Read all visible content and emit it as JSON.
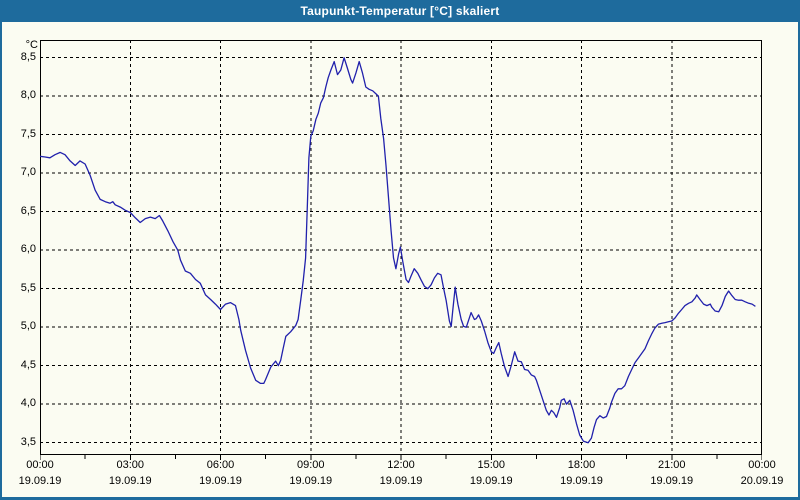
{
  "window": {
    "title": "Taupunkt-Temperatur [°C] skaliert"
  },
  "colors": {
    "titlebar_bg": "#1e6b9d",
    "titlebar_text": "#ffffff",
    "window_bg": "#fbfcf2",
    "border_blue": "#1e6b9d",
    "axis_black": "#000000",
    "line_blue": "#2121ac"
  },
  "chart_data": {
    "type": "line",
    "title": "Taupunkt-Temperatur [°C] skaliert",
    "unit_label": "°C",
    "xlabel": "",
    "ylabel": "°C",
    "grid": "dashed",
    "legend": "none",
    "xlim_hours": [
      0,
      24
    ],
    "ylim": [
      3.34,
      8.73
    ],
    "y_ticks": [
      {
        "value": 8.5,
        "label": "8,5"
      },
      {
        "value": 8.0,
        "label": "8,0"
      },
      {
        "value": 7.5,
        "label": "7,5"
      },
      {
        "value": 7.0,
        "label": "7,0"
      },
      {
        "value": 6.5,
        "label": "6,5"
      },
      {
        "value": 6.0,
        "label": "6,0"
      },
      {
        "value": 5.5,
        "label": "5,5"
      },
      {
        "value": 5.0,
        "label": "5,0"
      },
      {
        "value": 4.5,
        "label": "4,5"
      },
      {
        "value": 4.0,
        "label": "4,0"
      },
      {
        "value": 3.5,
        "label": "3,5"
      }
    ],
    "x_ticks": [
      {
        "hour": 0,
        "time": "00:00",
        "date": "19.09.19"
      },
      {
        "hour": 3,
        "time": "03:00",
        "date": "19.09.19"
      },
      {
        "hour": 6,
        "time": "06:00",
        "date": "19.09.19"
      },
      {
        "hour": 9,
        "time": "09:00",
        "date": "19.09.19"
      },
      {
        "hour": 12,
        "time": "12:00",
        "date": "19.09.19"
      },
      {
        "hour": 15,
        "time": "15:00",
        "date": "19.09.19"
      },
      {
        "hour": 18,
        "time": "18:00",
        "date": "19.09.19"
      },
      {
        "hour": 21,
        "time": "21:00",
        "date": "19.09.19"
      },
      {
        "hour": 24,
        "time": "00:00",
        "date": "20.09.19"
      }
    ],
    "x_minor_ticks_hours": [
      1.5,
      4.5,
      7.5,
      10.5,
      13.5,
      16.5,
      19.5,
      22.5
    ],
    "series": [
      {
        "name": "Taupunkt-Temperatur skaliert",
        "color": "#2121ac",
        "points": [
          [
            0,
            7.22
          ],
          [
            0.17,
            7.21
          ],
          [
            0.33,
            7.2
          ],
          [
            0.5,
            7.24
          ],
          [
            0.67,
            7.27
          ],
          [
            0.83,
            7.24
          ],
          [
            1,
            7.16
          ],
          [
            1.17,
            7.1
          ],
          [
            1.33,
            7.16
          ],
          [
            1.5,
            7.12
          ],
          [
            1.67,
            6.97
          ],
          [
            1.83,
            6.78
          ],
          [
            2,
            6.66
          ],
          [
            2.17,
            6.63
          ],
          [
            2.33,
            6.61
          ],
          [
            2.42,
            6.63
          ],
          [
            2.5,
            6.59
          ],
          [
            2.67,
            6.56
          ],
          [
            2.83,
            6.52
          ],
          [
            3,
            6.49
          ],
          [
            3.17,
            6.42
          ],
          [
            3.33,
            6.36
          ],
          [
            3.5,
            6.41
          ],
          [
            3.67,
            6.43
          ],
          [
            3.83,
            6.41
          ],
          [
            3.97,
            6.45
          ],
          [
            4.08,
            6.38
          ],
          [
            4.25,
            6.25
          ],
          [
            4.42,
            6.11
          ],
          [
            4.58,
            6.0
          ],
          [
            4.67,
            5.87
          ],
          [
            4.83,
            5.73
          ],
          [
            5,
            5.7
          ],
          [
            5.17,
            5.62
          ],
          [
            5.33,
            5.57
          ],
          [
            5.5,
            5.42
          ],
          [
            5.67,
            5.36
          ],
          [
            5.83,
            5.3
          ],
          [
            6,
            5.23
          ],
          [
            6.17,
            5.3
          ],
          [
            6.33,
            5.32
          ],
          [
            6.5,
            5.28
          ],
          [
            6.61,
            5.1
          ],
          [
            6.67,
            4.96
          ],
          [
            6.83,
            4.7
          ],
          [
            7,
            4.47
          ],
          [
            7.17,
            4.31
          ],
          [
            7.33,
            4.27
          ],
          [
            7.44,
            4.27
          ],
          [
            7.5,
            4.32
          ],
          [
            7.67,
            4.48
          ],
          [
            7.83,
            4.56
          ],
          [
            7.92,
            4.5
          ],
          [
            8,
            4.57
          ],
          [
            8.08,
            4.72
          ],
          [
            8.17,
            4.88
          ],
          [
            8.33,
            4.94
          ],
          [
            8.5,
            5.02
          ],
          [
            8.58,
            5.1
          ],
          [
            8.67,
            5.36
          ],
          [
            8.75,
            5.6
          ],
          [
            8.83,
            5.9
          ],
          [
            8.89,
            6.6
          ],
          [
            8.94,
            7.2
          ],
          [
            9,
            7.48
          ],
          [
            9.08,
            7.55
          ],
          [
            9.17,
            7.7
          ],
          [
            9.25,
            7.78
          ],
          [
            9.33,
            7.91
          ],
          [
            9.42,
            7.98
          ],
          [
            9.5,
            8.12
          ],
          [
            9.58,
            8.24
          ],
          [
            9.67,
            8.34
          ],
          [
            9.78,
            8.45
          ],
          [
            9.89,
            8.28
          ],
          [
            10,
            8.34
          ],
          [
            10.11,
            8.5
          ],
          [
            10.22,
            8.36
          ],
          [
            10.33,
            8.22
          ],
          [
            10.39,
            8.17
          ],
          [
            10.5,
            8.3
          ],
          [
            10.61,
            8.45
          ],
          [
            10.72,
            8.3
          ],
          [
            10.83,
            8.12
          ],
          [
            10.94,
            8.09
          ],
          [
            11.06,
            8.07
          ],
          [
            11.17,
            8.03
          ],
          [
            11.25,
            8.0
          ],
          [
            11.33,
            7.71
          ],
          [
            11.42,
            7.45
          ],
          [
            11.5,
            7.1
          ],
          [
            11.58,
            6.7
          ],
          [
            11.67,
            6.25
          ],
          [
            11.75,
            5.9
          ],
          [
            11.83,
            5.76
          ],
          [
            11.92,
            5.95
          ],
          [
            11.98,
            6.04
          ],
          [
            12.06,
            5.85
          ],
          [
            12.17,
            5.62
          ],
          [
            12.25,
            5.58
          ],
          [
            12.33,
            5.66
          ],
          [
            12.44,
            5.76
          ],
          [
            12.56,
            5.7
          ],
          [
            12.67,
            5.61
          ],
          [
            12.78,
            5.53
          ],
          [
            12.89,
            5.5
          ],
          [
            13,
            5.55
          ],
          [
            13.11,
            5.64
          ],
          [
            13.22,
            5.7
          ],
          [
            13.33,
            5.68
          ],
          [
            13.42,
            5.5
          ],
          [
            13.5,
            5.35
          ],
          [
            13.61,
            5.08
          ],
          [
            13.67,
            5.01
          ],
          [
            13.72,
            5.21
          ],
          [
            13.8,
            5.52
          ],
          [
            13.89,
            5.3
          ],
          [
            14,
            5.1
          ],
          [
            14.08,
            5.01
          ],
          [
            14.17,
            5.0
          ],
          [
            14.28,
            5.13
          ],
          [
            14.33,
            5.19
          ],
          [
            14.44,
            5.1
          ],
          [
            14.5,
            5.11
          ],
          [
            14.58,
            5.16
          ],
          [
            14.67,
            5.08
          ],
          [
            14.78,
            4.95
          ],
          [
            14.89,
            4.8
          ],
          [
            15,
            4.68
          ],
          [
            15.08,
            4.66
          ],
          [
            15.17,
            4.74
          ],
          [
            15.25,
            4.8
          ],
          [
            15.33,
            4.66
          ],
          [
            15.44,
            4.49
          ],
          [
            15.56,
            4.36
          ],
          [
            15.67,
            4.51
          ],
          [
            15.78,
            4.68
          ],
          [
            15.89,
            4.56
          ],
          [
            16,
            4.55
          ],
          [
            16.11,
            4.45
          ],
          [
            16.22,
            4.44
          ],
          [
            16.33,
            4.38
          ],
          [
            16.44,
            4.36
          ],
          [
            16.5,
            4.31
          ],
          [
            16.61,
            4.18
          ],
          [
            16.72,
            4.05
          ],
          [
            16.83,
            3.92
          ],
          [
            16.92,
            3.86
          ],
          [
            17,
            3.92
          ],
          [
            17.08,
            3.89
          ],
          [
            17.17,
            3.83
          ],
          [
            17.28,
            3.96
          ],
          [
            17.33,
            4.05
          ],
          [
            17.42,
            4.07
          ],
          [
            17.5,
            4.0
          ],
          [
            17.61,
            4.05
          ],
          [
            17.72,
            3.92
          ],
          [
            17.83,
            3.75
          ],
          [
            17.94,
            3.6
          ],
          [
            18.06,
            3.52
          ],
          [
            18.22,
            3.5
          ],
          [
            18.33,
            3.56
          ],
          [
            18.42,
            3.7
          ],
          [
            18.5,
            3.8
          ],
          [
            18.61,
            3.85
          ],
          [
            18.72,
            3.82
          ],
          [
            18.83,
            3.84
          ],
          [
            18.94,
            3.95
          ],
          [
            19,
            4.03
          ],
          [
            19.11,
            4.14
          ],
          [
            19.22,
            4.2
          ],
          [
            19.33,
            4.2
          ],
          [
            19.44,
            4.24
          ],
          [
            19.56,
            4.36
          ],
          [
            19.67,
            4.45
          ],
          [
            19.78,
            4.54
          ],
          [
            19.89,
            4.6
          ],
          [
            20,
            4.66
          ],
          [
            20.11,
            4.72
          ],
          [
            20.22,
            4.82
          ],
          [
            20.33,
            4.91
          ],
          [
            20.44,
            4.99
          ],
          [
            20.56,
            5.04
          ],
          [
            20.67,
            5.05
          ],
          [
            20.78,
            5.06
          ],
          [
            20.89,
            5.07
          ],
          [
            21,
            5.08
          ],
          [
            21.11,
            5.12
          ],
          [
            21.22,
            5.18
          ],
          [
            21.33,
            5.23
          ],
          [
            21.44,
            5.28
          ],
          [
            21.56,
            5.31
          ],
          [
            21.67,
            5.33
          ],
          [
            21.78,
            5.38
          ],
          [
            21.83,
            5.42
          ],
          [
            21.94,
            5.36
          ],
          [
            22.06,
            5.3
          ],
          [
            22.17,
            5.28
          ],
          [
            22.28,
            5.3
          ],
          [
            22.33,
            5.26
          ],
          [
            22.44,
            5.21
          ],
          [
            22.56,
            5.2
          ],
          [
            22.67,
            5.28
          ],
          [
            22.78,
            5.4
          ],
          [
            22.89,
            5.47
          ],
          [
            23,
            5.41
          ],
          [
            23.11,
            5.36
          ],
          [
            23.22,
            5.35
          ],
          [
            23.33,
            5.35
          ],
          [
            23.44,
            5.33
          ],
          [
            23.56,
            5.31
          ],
          [
            23.67,
            5.3
          ],
          [
            23.78,
            5.27
          ]
        ]
      }
    ]
  }
}
